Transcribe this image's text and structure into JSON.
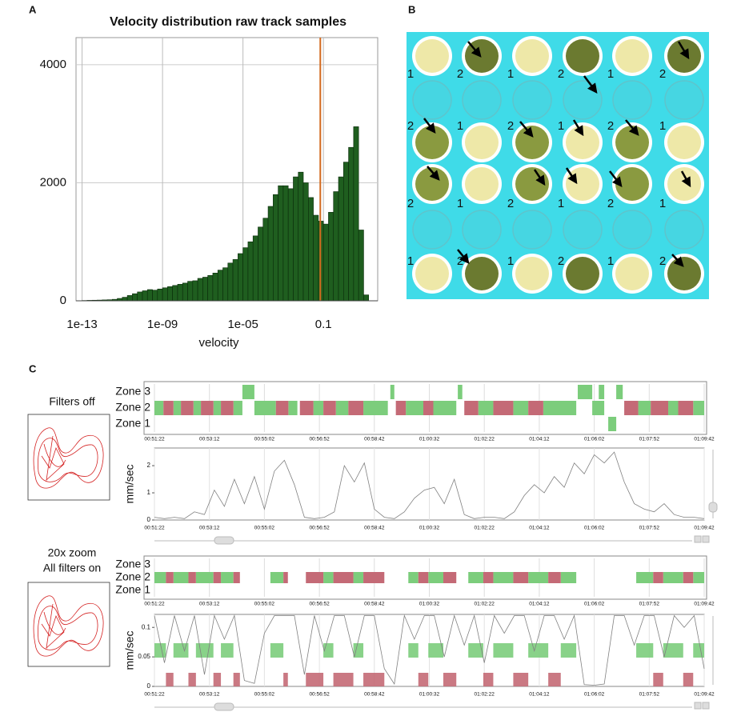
{
  "panel_labels": [
    "A",
    "B",
    "C"
  ],
  "captions": [
    "Filters off",
    "20x zoom",
    "All filters on"
  ],
  "plate": {
    "rows": [
      [
        "1",
        "2",
        "1",
        "2",
        "1",
        "2"
      ],
      [
        "2",
        "1",
        "2",
        "1",
        "2",
        "1"
      ],
      [
        "2",
        "1",
        "2",
        "1",
        "2",
        "1"
      ],
      [
        "1",
        "2",
        "1",
        "2",
        "1",
        "2"
      ]
    ]
  },
  "chart_data": [
    {
      "type": "histogram",
      "title": "Velocity distribution raw track samples",
      "x_label": "velocity",
      "xscale": "log",
      "bins": [
        1e-13,
        1.778e-13,
        3.162e-13,
        5.623e-13,
        1e-12,
        1.778e-12,
        3.162e-12,
        5.623e-12,
        1e-11,
        1.778e-11,
        3.162e-11,
        5.623e-11,
        1e-10,
        1.778e-10,
        3.162e-10,
        5.623e-10,
        1e-09,
        1.778e-09,
        3.162e-09,
        5.623e-09,
        1e-08,
        1.778e-08,
        3.162e-08,
        5.623e-08,
        1e-07,
        1.778e-07,
        3.162e-07,
        5.623e-07,
        1e-06,
        1.778e-06,
        3.162e-06,
        5.623e-06,
        1e-05,
        1.778e-05,
        3.162e-05,
        5.623e-05,
        0.0001,
        0.0001778,
        0.0003162,
        0.0005623,
        0.001,
        0.001778,
        0.003162,
        0.005623,
        0.01,
        0.01778,
        0.03162,
        0.05623,
        0.1,
        0.1778,
        0.3162,
        0.5623,
        1,
        1.778,
        3.162,
        5.623,
        10,
        17.78
      ],
      "values": [
        5,
        8,
        10,
        12,
        15,
        18,
        25,
        40,
        60,
        90,
        120,
        150,
        170,
        190,
        180,
        200,
        220,
        240,
        260,
        280,
        300,
        330,
        340,
        380,
        400,
        430,
        470,
        520,
        560,
        640,
        700,
        800,
        900,
        1000,
        1100,
        1250,
        1400,
        1600,
        1800,
        1950,
        1950,
        1900,
        2100,
        2180,
        2000,
        1750,
        1450,
        1350,
        1300,
        1500,
        1850,
        2100,
        2350,
        2600,
        2950,
        1200,
        100
      ],
      "color": "#1f5e1f",
      "vline": 0.07,
      "vline_color": "#d2691e",
      "xlim": [
        5e-14,
        50
      ],
      "xticks": [
        {
          "value": 1e-13,
          "label": "1e-13"
        },
        {
          "value": 1e-09,
          "label": "1e-09"
        },
        {
          "value": 1e-05,
          "label": "1e-05"
        },
        0.1
      ],
      "ylim": [
        0,
        4460
      ],
      "yticks": [
        0,
        2000,
        4000
      ],
      "grid": true
    },
    {
      "type": "timeline",
      "categories": [
        "Zone 3",
        "Zone 2",
        "Zone 1"
      ],
      "colors": {
        "green": "#7ccd7c",
        "red": "#c46a76"
      },
      "segments": [
        {
          "green": [
            [
              3258,
              3282
            ],
            [
              3554,
              3562
            ],
            [
              3689,
              3698
            ],
            [
              3929,
              3958
            ],
            [
              3971,
              3982
            ],
            [
              4006,
              4019
            ]
          ],
          "red": []
        },
        {
          "green": [
            [
              3082,
              3100
            ],
            [
              3120,
              3135
            ],
            [
              3160,
              3175
            ],
            [
              3200,
              3215
            ],
            [
              3240,
              3258
            ],
            [
              3282,
              3325
            ],
            [
              3350,
              3368
            ],
            [
              3400,
              3420
            ],
            [
              3445,
              3470
            ],
            [
              3500,
              3549
            ],
            [
              3585,
              3620
            ],
            [
              3640,
              3686
            ],
            [
              3730,
              3760
            ],
            [
              3800,
              3830
            ],
            [
              3860,
              3926
            ],
            [
              3958,
              3982
            ],
            [
              4050,
              4075
            ],
            [
              4110,
              4130
            ],
            [
              4160,
              4182
            ]
          ],
          "red": [
            [
              3100,
              3120
            ],
            [
              3135,
              3160
            ],
            [
              3175,
              3200
            ],
            [
              3215,
              3240
            ],
            [
              3325,
              3350
            ],
            [
              3373,
              3400
            ],
            [
              3420,
              3445
            ],
            [
              3470,
              3500
            ],
            [
              3565,
              3585
            ],
            [
              3620,
              3640
            ],
            [
              3702,
              3730
            ],
            [
              3760,
              3800
            ],
            [
              3830,
              3860
            ],
            [
              4022,
              4050
            ],
            [
              4075,
              4110
            ],
            [
              4130,
              4160
            ]
          ]
        },
        {
          "green": [
            [
              3990,
              4006
            ]
          ],
          "red": []
        }
      ],
      "xlim": [
        3082,
        4182
      ],
      "xticks": [
        {
          "value": 3082,
          "label": "00:51:22"
        },
        {
          "value": 3192,
          "label": "00:53:12"
        },
        {
          "value": 3302,
          "label": "00:55:02"
        },
        {
          "value": 3412,
          "label": "00:56:52"
        },
        {
          "value": 3522,
          "label": "00:58:42"
        },
        {
          "value": 3632,
          "label": "01:00:32"
        },
        {
          "value": 3742,
          "label": "01:02:22"
        },
        {
          "value": 3852,
          "label": "01:04:12"
        },
        {
          "value": 3962,
          "label": "01:06:02"
        },
        {
          "value": 4072,
          "label": "01:07:52"
        },
        {
          "value": 4182,
          "label": "01:09:42"
        }
      ]
    },
    {
      "type": "line",
      "y_label": "mm/sec",
      "color": "#808080",
      "x": [
        3082,
        3102,
        3122,
        3142,
        3162,
        3182,
        3202,
        3222,
        3242,
        3262,
        3282,
        3302,
        3322,
        3342,
        3362,
        3382,
        3402,
        3422,
        3442,
        3462,
        3482,
        3502,
        3522,
        3542,
        3562,
        3582,
        3602,
        3622,
        3642,
        3662,
        3682,
        3702,
        3722,
        3742,
        3762,
        3782,
        3802,
        3822,
        3842,
        3862,
        3882,
        3902,
        3922,
        3942,
        3962,
        3982,
        4002,
        4022,
        4042,
        4062,
        4082,
        4102,
        4122,
        4142,
        4162,
        4182
      ],
      "values": [
        0.1,
        0.05,
        0.1,
        0.05,
        0.3,
        0.2,
        1.1,
        0.5,
        1.5,
        0.6,
        1.6,
        0.4,
        1.8,
        2.2,
        1.3,
        0.1,
        0.05,
        0.1,
        0.3,
        2.0,
        1.4,
        2.1,
        0.4,
        0.1,
        0.05,
        0.3,
        0.8,
        1.1,
        1.2,
        0.6,
        1.5,
        0.2,
        0.05,
        0.1,
        0.1,
        0.05,
        0.3,
        0.9,
        1.3,
        1.0,
        1.6,
        1.2,
        2.1,
        1.7,
        2.4,
        2.1,
        2.5,
        1.4,
        0.6,
        0.4,
        0.3,
        0.6,
        0.2,
        0.1,
        0.1,
        0.05
      ],
      "xlim": [
        3082,
        4182
      ],
      "ylim": [
        0,
        2.65
      ],
      "yticks": [
        0,
        1,
        2
      ],
      "xticks": [
        {
          "value": 3082,
          "label": "00:51:22"
        },
        {
          "value": 3192,
          "label": "00:53:12"
        },
        {
          "value": 3302,
          "label": "00:55:02"
        },
        {
          "value": 3412,
          "label": "00:56:52"
        },
        {
          "value": 3522,
          "label": "00:58:42"
        },
        {
          "value": 3632,
          "label": "01:00:32"
        },
        {
          "value": 3742,
          "label": "01:02:22"
        },
        {
          "value": 3852,
          "label": "01:04:12"
        },
        {
          "value": 3962,
          "label": "01:06:02"
        },
        {
          "value": 4072,
          "label": "01:07:52"
        },
        {
          "value": 4182,
          "label": "01:09:42"
        }
      ]
    },
    {
      "type": "timeline",
      "categories": [
        "Zone 3",
        "Zone 2",
        "Zone 1"
      ],
      "colors": {
        "green": "#7ccd7c",
        "red": "#c46a76"
      },
      "segments": [
        {
          "green": [],
          "red": []
        },
        {
          "green": [
            [
              3082,
              3105
            ],
            [
              3120,
              3150
            ],
            [
              3165,
              3200
            ],
            [
              3215,
              3240
            ],
            [
              3314,
              3340
            ],
            [
              3420,
              3440
            ],
            [
              3480,
              3500
            ],
            [
              3590,
              3610
            ],
            [
              3630,
              3660
            ],
            [
              3710,
              3740
            ],
            [
              3760,
              3800
            ],
            [
              3830,
              3870
            ],
            [
              3895,
              3926
            ],
            [
              4046,
              4080
            ],
            [
              4100,
              4140
            ],
            [
              4160,
              4182
            ]
          ],
          "red": [
            [
              3105,
              3120
            ],
            [
              3150,
              3165
            ],
            [
              3200,
              3215
            ],
            [
              3240,
              3253
            ],
            [
              3340,
              3349
            ],
            [
              3385,
              3420
            ],
            [
              3440,
              3480
            ],
            [
              3500,
              3542
            ],
            [
              3610,
              3630
            ],
            [
              3660,
              3686
            ],
            [
              3740,
              3760
            ],
            [
              3800,
              3830
            ],
            [
              3870,
              3895
            ],
            [
              4080,
              4100
            ],
            [
              4140,
              4160
            ]
          ]
        },
        {
          "green": [],
          "red": []
        }
      ],
      "xlim": [
        3082,
        4182
      ],
      "xticks": [
        {
          "value": 3082,
          "label": "00:51:22"
        },
        {
          "value": 3192,
          "label": "00:53:12"
        },
        {
          "value": 3302,
          "label": "00:55:02"
        },
        {
          "value": 3412,
          "label": "00:56:52"
        },
        {
          "value": 3522,
          "label": "00:58:42"
        },
        {
          "value": 3632,
          "label": "01:00:32"
        },
        {
          "value": 3742,
          "label": "01:02:22"
        },
        {
          "value": 3852,
          "label": "01:04:12"
        },
        {
          "value": 3962,
          "label": "01:06:02"
        },
        {
          "value": 4072,
          "label": "01:07:52"
        },
        {
          "value": 4182,
          "label": "01:09:42"
        }
      ]
    },
    {
      "type": "line",
      "y_label": "mm/sec",
      "color": "#808080",
      "x": [
        3082,
        3102,
        3122,
        3142,
        3162,
        3182,
        3202,
        3222,
        3242,
        3262,
        3282,
        3302,
        3322,
        3342,
        3362,
        3382,
        3402,
        3422,
        3442,
        3462,
        3482,
        3502,
        3522,
        3542,
        3562,
        3582,
        3602,
        3622,
        3642,
        3662,
        3682,
        3702,
        3722,
        3742,
        3762,
        3782,
        3802,
        3822,
        3842,
        3862,
        3882,
        3902,
        3922,
        3942,
        3962,
        3982,
        4002,
        4022,
        4042,
        4062,
        4082,
        4102,
        4122,
        4142,
        4162,
        4182
      ],
      "values": [
        0.12,
        0.04,
        0.12,
        0.06,
        0.12,
        0.02,
        0.12,
        0.08,
        0.12,
        0.01,
        0.005,
        0.09,
        0.12,
        0.12,
        0.12,
        0.02,
        0.12,
        0.06,
        0.12,
        0.12,
        0.05,
        0.12,
        0.12,
        0.03,
        0.004,
        0.12,
        0.08,
        0.12,
        0.12,
        0.05,
        0.12,
        0.07,
        0.12,
        0.04,
        0.12,
        0.09,
        0.12,
        0.12,
        0.06,
        0.12,
        0.12,
        0.08,
        0.12,
        0.003,
        0.002,
        0.004,
        0.12,
        0.12,
        0.07,
        0.12,
        0.12,
        0.05,
        0.12,
        0.1,
        0.12,
        0.03
      ],
      "xlim": [
        3082,
        4182
      ],
      "ylim": [
        0,
        0.122
      ],
      "yticks": [
        0,
        0.05,
        0.1
      ],
      "xticks": [
        {
          "value": 3082,
          "label": "00:51:22"
        },
        {
          "value": 3192,
          "label": "00:53:12"
        },
        {
          "value": 3302,
          "label": "00:55:02"
        },
        {
          "value": 3412,
          "label": "00:56:52"
        },
        {
          "value": 3522,
          "label": "00:58:42"
        },
        {
          "value": 3632,
          "label": "01:00:32"
        },
        {
          "value": 3742,
          "label": "01:02:22"
        },
        {
          "value": 3852,
          "label": "01:04:12"
        },
        {
          "value": 3962,
          "label": "01:06:02"
        },
        {
          "value": 4072,
          "label": "01:07:52"
        },
        {
          "value": 4182,
          "label": "01:09:42"
        }
      ]
    }
  ]
}
